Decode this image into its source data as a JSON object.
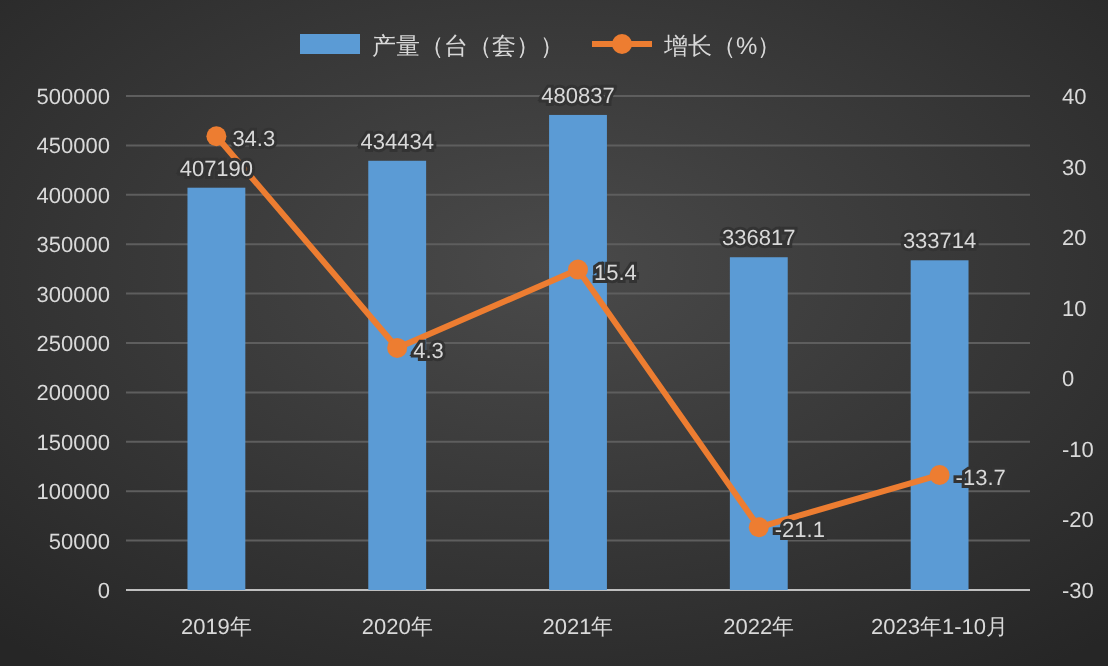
{
  "chart_data": {
    "type": "bar",
    "categories": [
      "2019年",
      "2020年",
      "2021年",
      "2022年",
      "2023年1-10月"
    ],
    "series": [
      {
        "name": "产量（台（套））",
        "color": "#5b9bd5",
        "values": [
          407190,
          434434,
          480837,
          336817,
          333714
        ]
      },
      {
        "name": "增长（%）",
        "type": "line",
        "axis": "y2",
        "color": "#ed7d31",
        "marker": "circle",
        "values": [
          34.3,
          4.3,
          15.4,
          -21.1,
          -13.7
        ]
      }
    ],
    "ylim": [
      0,
      500000
    ],
    "yticks": [
      0,
      50000,
      100000,
      150000,
      200000,
      250000,
      300000,
      350000,
      400000,
      450000,
      500000
    ],
    "y2lim": [
      -30,
      40
    ],
    "y2ticks": [
      -30,
      -20,
      -10,
      0,
      10,
      20,
      30,
      40
    ],
    "grid": "y",
    "legend": "top",
    "data_labels": true
  }
}
